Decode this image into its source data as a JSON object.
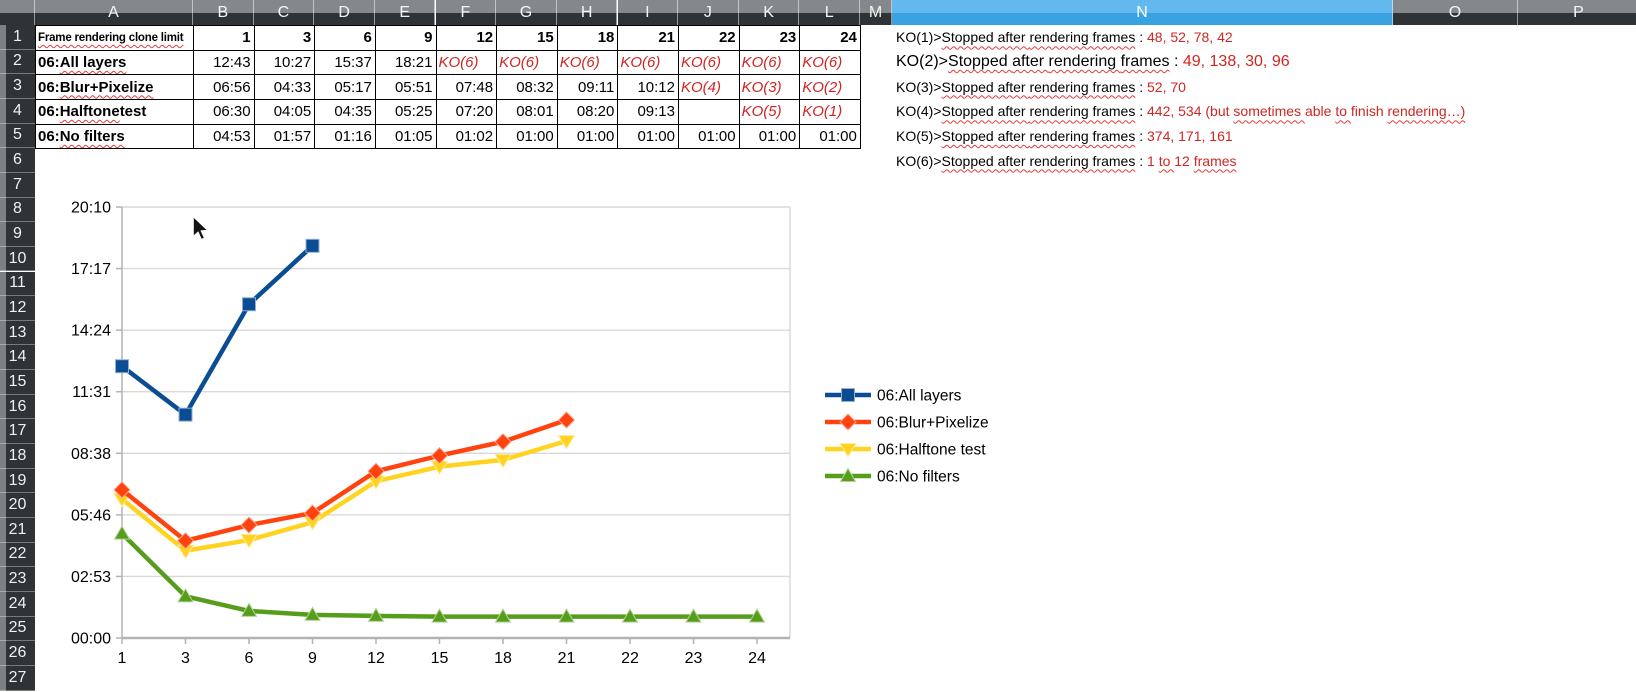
{
  "columns": {
    "labels": [
      "A",
      "B",
      "C",
      "D",
      "E",
      "F",
      "G",
      "H",
      "I",
      "J",
      "K",
      "L",
      "M",
      "N",
      "O",
      "P"
    ],
    "selected": "N"
  },
  "rows": {
    "count": 27
  },
  "table": {
    "corner_label": "Frame rendering clone limit",
    "limits": [
      "1",
      "3",
      "6",
      "9",
      "12",
      "15",
      "18",
      "21",
      "22",
      "23",
      "24"
    ],
    "series_rows": [
      {
        "label": "06:All layers",
        "wavy": "All layers",
        "cells": [
          "12:43",
          "10:27",
          "15:37",
          "18:21",
          "KO(6)",
          "KO(6)",
          "KO(6)",
          "KO(6)",
          "KO(6)",
          "KO(6)",
          "KO(6)"
        ]
      },
      {
        "label": "06:Blur+Pixelize",
        "wavy": "Blur+Pixelize",
        "cells": [
          "06:56",
          "04:33",
          "05:17",
          "05:51",
          "07:48",
          "08:32",
          "09:11",
          "10:12",
          "KO(4)",
          "KO(3)",
          "KO(2)"
        ]
      },
      {
        "label": "06:Halftone test",
        "wavy": "Halftone",
        "cells": [
          "06:30",
          "04:05",
          "04:35",
          "05:25",
          "07:20",
          "08:01",
          "08:20",
          "09:13",
          "",
          "KO(5)",
          "KO(1)"
        ]
      },
      {
        "label": "06:No filters",
        "wavy": "No filters",
        "cells": [
          "04:53",
          "01:57",
          "01:16",
          "01:05",
          "01:02",
          "01:00",
          "01:00",
          "01:00",
          "01:00",
          "01:00",
          "01:00"
        ]
      }
    ]
  },
  "notes": [
    {
      "prefix": "KO(1)>",
      "phrase": "Stopped after rendering frames",
      "sep": " : ",
      "value": "48, 52, 78, 42",
      "size": 14
    },
    {
      "prefix": "KO(2)>",
      "phrase": "Stopped after rendering frames",
      "sep": " : ",
      "value": "49, 138, 30, 96",
      "size": 16
    },
    {
      "prefix": "KO(3)>",
      "phrase": "Stopped after rendering frames",
      "sep": " : ",
      "value": "52, 70",
      "size": 14
    },
    {
      "prefix": "KO(4)>",
      "phrase": "Stopped after rendering frames",
      "sep": " : ",
      "value": "442, 534 (but sometimes able to finish rendering…)",
      "size": 14
    },
    {
      "prefix": "KO(5)>",
      "phrase": "Stopped after rendering frames",
      "sep": " : ",
      "value": "374, 171, 161",
      "size": 14
    },
    {
      "prefix": "KO(6)>",
      "phrase": "Stopped after rendering frames",
      "sep": " : ",
      "value": "1 to 12 frames",
      "size": 14
    }
  ],
  "wavy_words": [
    "stopped",
    "after",
    "rendering",
    "frames",
    "sometimes",
    "to"
  ],
  "chart_data": {
    "type": "line",
    "categories": [
      "1",
      "3",
      "6",
      "9",
      "12",
      "15",
      "18",
      "21",
      "22",
      "23",
      "24"
    ],
    "y_ticks": [
      "00:00",
      "02:53",
      "05:46",
      "08:38",
      "11:31",
      "14:24",
      "17:17",
      "20:10"
    ],
    "y_axis_max_seconds": 1210,
    "xlabel": "",
    "ylabel": "",
    "grid": true,
    "legend_position": "right",
    "series": [
      {
        "name": "06:All layers",
        "color": "#0b4d93",
        "marker": "square",
        "values": [
          "12:43",
          "10:27",
          "15:37",
          "18:21"
        ]
      },
      {
        "name": "06:Blur+Pixelize",
        "color": "#ff420e",
        "marker": "diamond",
        "values": [
          "06:56",
          "04:33",
          "05:17",
          "05:51",
          "07:48",
          "08:32",
          "09:11",
          "10:12"
        ]
      },
      {
        "name": "06:Halftone test",
        "color": "#ffd320",
        "marker": "triangle-down",
        "values": [
          "06:30",
          "04:05",
          "04:35",
          "05:25",
          "07:20",
          "08:01",
          "08:20",
          "09:13"
        ]
      },
      {
        "name": "06:No filters",
        "color": "#579d1c",
        "marker": "triangle-up",
        "values": [
          "04:53",
          "01:57",
          "01:16",
          "01:05",
          "01:02",
          "01:00",
          "01:00",
          "01:00",
          "01:00",
          "01:00",
          "01:00"
        ]
      }
    ]
  },
  "colors": {
    "ko_red": "#d02622",
    "note_value_red": "#d02622",
    "header_top": "#85888b",
    "header_bottom": "#2f3336",
    "selected_header_blue": "#38a2e3",
    "gridline": "#d9d9d9",
    "axis": "#b3b3b3"
  }
}
